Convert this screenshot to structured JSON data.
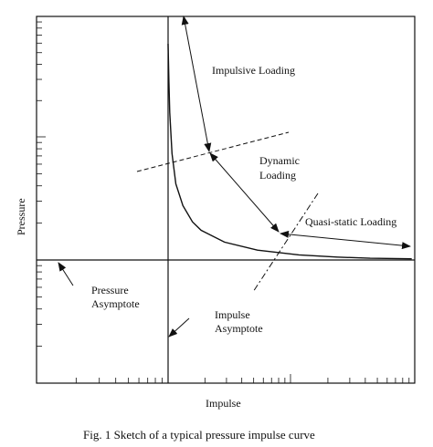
{
  "chart_data": {
    "type": "line",
    "title": "",
    "caption": "Fig. 1 Sketch of a typical pressure impulse curve",
    "xlabel": "Impulse",
    "ylabel": "Pressure",
    "x_scale": "log",
    "y_scale": "log",
    "grid": false,
    "series": [
      {
        "x": [
          1.0,
          1.01,
          1.02,
          1.05,
          1.1,
          1.2,
          1.35,
          1.5,
          2.0,
          3.0,
          5.0,
          8.0,
          12.0,
          20.0
        ],
        "y": [
          38.0,
          20.0,
          12.0,
          6.0,
          3.6,
          2.5,
          1.9,
          1.65,
          1.35,
          1.18,
          1.09,
          1.05,
          1.03,
          1.02
        ]
      }
    ],
    "annotations": [
      {
        "text": "Impulsive Loading"
      },
      {
        "text": "Dynamic\nLoading"
      },
      {
        "text": "Quasi-static Loading"
      },
      {
        "text": "Pressure\nAsymptote"
      },
      {
        "text": "Impulse\nAsymptote"
      }
    ]
  }
}
